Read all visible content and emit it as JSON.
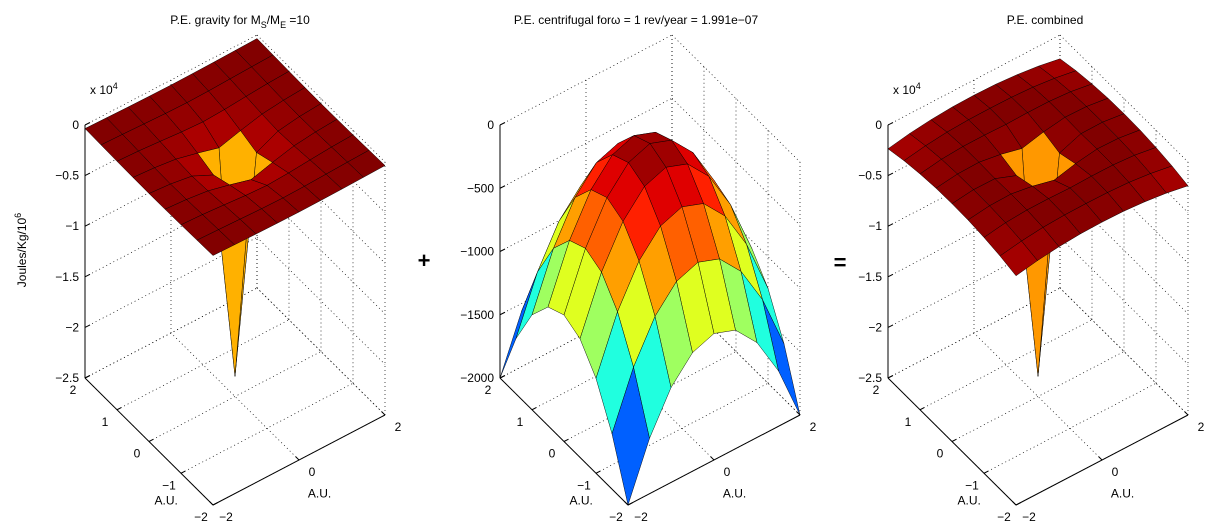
{
  "operators": [
    "+",
    "="
  ],
  "chart_data": [
    {
      "type": "surface",
      "title_parts": [
        {
          "text": "P.E. gravity for M"
        },
        {
          "text": "S",
          "sub": true
        },
        {
          "text": "/M"
        },
        {
          "text": "E",
          "sub": true
        },
        {
          "text": " =10"
        }
      ],
      "exponent_label": [
        {
          "text": "x 10"
        },
        {
          "text": "4",
          "sup": true
        }
      ],
      "zlabel_parts": [
        {
          "text": "Joules/Kg/10"
        },
        {
          "text": "6",
          "sup": true
        }
      ],
      "xlabel": "A.U.",
      "ylabel": "A.U.",
      "colormap": "jet",
      "grid": true,
      "x": [
        -2,
        -1.5,
        -1,
        -0.5,
        0,
        0.5,
        1,
        1.5,
        2
      ],
      "y": [
        -2,
        -1.5,
        -1,
        -0.5,
        0,
        0.5,
        1,
        1.5,
        2
      ],
      "z": [
        [
          -0.035,
          -0.04,
          -0.045,
          -0.048,
          -0.05,
          -0.048,
          -0.045,
          -0.04,
          -0.035
        ],
        [
          -0.04,
          -0.047,
          -0.055,
          -0.063,
          -0.067,
          -0.063,
          -0.055,
          -0.047,
          -0.04
        ],
        [
          -0.045,
          -0.055,
          -0.071,
          -0.089,
          -0.1,
          -0.089,
          -0.071,
          -0.055,
          -0.045
        ],
        [
          -0.048,
          -0.063,
          -0.089,
          -0.141,
          -0.2,
          -0.141,
          -0.089,
          -0.063,
          -0.048
        ],
        [
          -0.05,
          -0.067,
          -0.1,
          -0.2,
          -2.3,
          -0.2,
          -0.1,
          -0.067,
          -0.05
        ],
        [
          -0.048,
          -0.063,
          -0.089,
          -0.141,
          -0.2,
          -0.141,
          -0.089,
          -0.063,
          -0.048
        ],
        [
          -0.045,
          -0.055,
          -0.071,
          -0.089,
          -0.1,
          -0.089,
          -0.071,
          -0.055,
          -0.045
        ],
        [
          -0.04,
          -0.047,
          -0.055,
          -0.063,
          -0.067,
          -0.063,
          -0.055,
          -0.047,
          -0.04
        ],
        [
          -0.035,
          -0.04,
          -0.045,
          -0.048,
          -0.05,
          -0.048,
          -0.045,
          -0.04,
          -0.035
        ]
      ],
      "xlim": [
        -2,
        2
      ],
      "ylim": [
        -2,
        2
      ],
      "zlim": [
        -2.5,
        0
      ],
      "xticks": [
        {
          "value": -2,
          "label": "−2"
        },
        0,
        2
      ],
      "yticks": [
        {
          "value": -2,
          "label": "−2"
        },
        {
          "value": -1,
          "label": "−1"
        },
        0,
        1,
        2
      ],
      "zticks": [
        {
          "value": -2.5,
          "label": "−2.5"
        },
        {
          "value": -2,
          "label": "−2"
        },
        {
          "value": -1.5,
          "label": "−1.5"
        },
        {
          "value": -1,
          "label": "−1"
        },
        {
          "value": -0.5,
          "label": "−0.5"
        },
        0
      ]
    },
    {
      "type": "surface",
      "title_parts": [
        {
          "text": "P.E. centrifugal forω = 1 rev/year = 1.991e−07"
        }
      ],
      "xlabel": "A.U.",
      "ylabel": "A.U.",
      "colormap": "jet",
      "grid": true,
      "x": [
        -2,
        -1.5,
        -1,
        -0.5,
        0,
        0.5,
        1,
        1.5,
        2
      ],
      "y": [
        -2,
        -1.5,
        -1,
        -0.5,
        0,
        0.5,
        1,
        1.5,
        2
      ],
      "z": [
        [
          -2000,
          -1562.5,
          -1250,
          -1062.5,
          -1000,
          -1062.5,
          -1250,
          -1562.5,
          -2000
        ],
        [
          -1562.5,
          -1125,
          -812.5,
          -625,
          -562.5,
          -625,
          -812.5,
          -1125,
          -1562.5
        ],
        [
          -1250,
          -812.5,
          -500,
          -312.5,
          -250,
          -312.5,
          -500,
          -812.5,
          -1250
        ],
        [
          -1062.5,
          -625,
          -312.5,
          -125,
          -62.5,
          -125,
          -312.5,
          -625,
          -1062.5
        ],
        [
          -1000,
          -562.5,
          -250,
          -62.5,
          0,
          -62.5,
          -250,
          -562.5,
          -1000
        ],
        [
          -1062.5,
          -625,
          -312.5,
          -125,
          -62.5,
          -125,
          -312.5,
          -625,
          -1062.5
        ],
        [
          -1250,
          -812.5,
          -500,
          -312.5,
          -250,
          -312.5,
          -500,
          -812.5,
          -1250
        ],
        [
          -1562.5,
          -1125,
          -812.5,
          -625,
          -562.5,
          -625,
          -812.5,
          -1125,
          -1562.5
        ],
        [
          -2000,
          -1562.5,
          -1250,
          -1062.5,
          -1000,
          -1062.5,
          -1250,
          -1562.5,
          -2000
        ]
      ],
      "xlim": [
        -2,
        2
      ],
      "ylim": [
        -2,
        2
      ],
      "zlim": [
        -2000,
        0
      ],
      "xticks": [
        {
          "value": -2,
          "label": "−2"
        },
        0,
        2
      ],
      "yticks": [
        {
          "value": -2,
          "label": "−2"
        },
        {
          "value": -1,
          "label": "−1"
        },
        0,
        1,
        2
      ],
      "zticks": [
        {
          "value": -2000,
          "label": "−2000"
        },
        {
          "value": -1500,
          "label": "−1500"
        },
        {
          "value": -1000,
          "label": "−1000"
        },
        {
          "value": -500,
          "label": "−500"
        },
        0
      ]
    },
    {
      "type": "surface",
      "title_parts": [
        {
          "text": "P.E. combined"
        }
      ],
      "exponent_label": [
        {
          "text": "x 10"
        },
        {
          "text": "4",
          "sup": true
        }
      ],
      "xlabel": "A.U.",
      "ylabel": "A.U.",
      "colormap": "jet",
      "grid": true,
      "x": [
        -2,
        -1.5,
        -1,
        -0.5,
        0,
        0.5,
        1,
        1.5,
        2
      ],
      "y": [
        -2,
        -1.5,
        -1,
        -0.5,
        0,
        0.5,
        1,
        1.5,
        2
      ],
      "z": [
        [
          -0.235,
          -0.196,
          -0.17,
          -0.154,
          -0.15,
          -0.154,
          -0.17,
          -0.196,
          -0.235
        ],
        [
          -0.196,
          -0.16,
          -0.136,
          -0.125,
          -0.123,
          -0.125,
          -0.136,
          -0.16,
          -0.196
        ],
        [
          -0.17,
          -0.136,
          -0.121,
          -0.12,
          -0.125,
          -0.12,
          -0.121,
          -0.136,
          -0.17
        ],
        [
          -0.154,
          -0.125,
          -0.12,
          -0.154,
          -0.206,
          -0.154,
          -0.12,
          -0.125,
          -0.154
        ],
        [
          -0.15,
          -0.123,
          -0.125,
          -0.206,
          -2.3,
          -0.206,
          -0.125,
          -0.123,
          -0.15
        ],
        [
          -0.154,
          -0.125,
          -0.12,
          -0.154,
          -0.206,
          -0.154,
          -0.12,
          -0.125,
          -0.154
        ],
        [
          -0.17,
          -0.136,
          -0.121,
          -0.12,
          -0.125,
          -0.12,
          -0.121,
          -0.136,
          -0.17
        ],
        [
          -0.196,
          -0.16,
          -0.136,
          -0.125,
          -0.123,
          -0.125,
          -0.136,
          -0.16,
          -0.196
        ],
        [
          -0.235,
          -0.196,
          -0.17,
          -0.154,
          -0.15,
          -0.154,
          -0.17,
          -0.196,
          -0.235
        ]
      ],
      "xlim": [
        -2,
        2
      ],
      "ylim": [
        -2,
        2
      ],
      "zlim": [
        -2.5,
        0
      ],
      "xticks": [
        {
          "value": -2,
          "label": "−2"
        },
        0,
        2
      ],
      "yticks": [
        {
          "value": -2,
          "label": "−2"
        },
        {
          "value": -1,
          "label": "−1"
        },
        0,
        1,
        2
      ],
      "zticks": [
        {
          "value": -2.5,
          "label": "−2.5"
        },
        {
          "value": -2,
          "label": "−2"
        },
        {
          "value": -1.5,
          "label": "−1.5"
        },
        {
          "value": -1,
          "label": "−1"
        },
        {
          "value": -0.5,
          "label": "−0.5"
        },
        0
      ]
    }
  ]
}
